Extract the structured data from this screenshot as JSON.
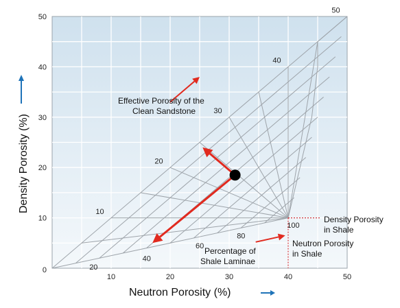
{
  "chart_data": {
    "type": "scatter",
    "title": "",
    "xlabel": "Neutron Porosity (%)",
    "ylabel": "Density Porosity (%)",
    "xlim": [
      0,
      50
    ],
    "ylim": [
      0,
      50
    ],
    "x_ticks": [
      "10",
      "20",
      "30",
      "40",
      "50"
    ],
    "y_ticks": [
      "10",
      "20",
      "30",
      "40",
      "50"
    ],
    "origin_label": "0",
    "grid": true,
    "clean_sand_line": {
      "from": [
        0,
        0
      ],
      "to": [
        50,
        50
      ]
    },
    "shale_point": {
      "neutron": 40,
      "density": 10
    },
    "clean_porosity_lines": [
      5,
      10,
      15,
      20,
      25,
      30,
      35,
      40,
      45
    ],
    "clean_porosity_labels": [
      {
        "value": "10",
        "x": 9,
        "y": 10.5
      },
      {
        "value": "20",
        "x": 19,
        "y": 20.5
      },
      {
        "value": "30",
        "x": 29,
        "y": 30.5
      },
      {
        "value": "40",
        "x": 39,
        "y": 40.5
      },
      {
        "value": "50",
        "x": 49,
        "y": 50.5
      }
    ],
    "laminae_fractions": [
      0.1,
      0.2,
      0.3,
      0.4,
      0.5,
      0.6,
      0.7,
      0.8,
      0.9
    ],
    "laminae_labels": [
      {
        "value": "20",
        "x": 7,
        "y": 0.3
      },
      {
        "value": "40",
        "x": 16,
        "y": 2
      },
      {
        "value": "60",
        "x": 25,
        "y": 4.5
      },
      {
        "value": "80",
        "x": 32,
        "y": 6.5
      },
      {
        "value": "100",
        "x": 40.5,
        "y": 8.6
      }
    ],
    "data_point": {
      "neutron": 31,
      "density": 18.5
    },
    "arrows": [
      {
        "from": [
          31,
          18.5
        ],
        "to": [
          25.5,
          24
        ]
      },
      {
        "from": [
          31,
          18.5
        ],
        "to": [
          17,
          5
        ]
      },
      {
        "from": [
          20,
          33
        ],
        "to": [
          25,
          38
        ]
      },
      {
        "from": [
          34.5,
          5.2
        ],
        "to": [
          39.5,
          6.5
        ]
      }
    ],
    "annotations": {
      "effective_porosity": [
        "Effective Porosity of the",
        "Clean Sandstone"
      ],
      "shale_laminae": [
        "Percentage of",
        "Shale Laminae"
      ],
      "density_shale": [
        "Density Porosity",
        "in Shale"
      ],
      "neutron_shale": [
        "Neutron Porosity",
        "in Shale"
      ]
    },
    "colors": {
      "plot_bg": "#e3eef6",
      "grid": "#ffffff",
      "lines": "#9ea4aa",
      "arrow": "#e12a1f",
      "axis_arrow": "#1e73b8",
      "shale_dash": "#d0353a",
      "point": "#000000"
    }
  }
}
